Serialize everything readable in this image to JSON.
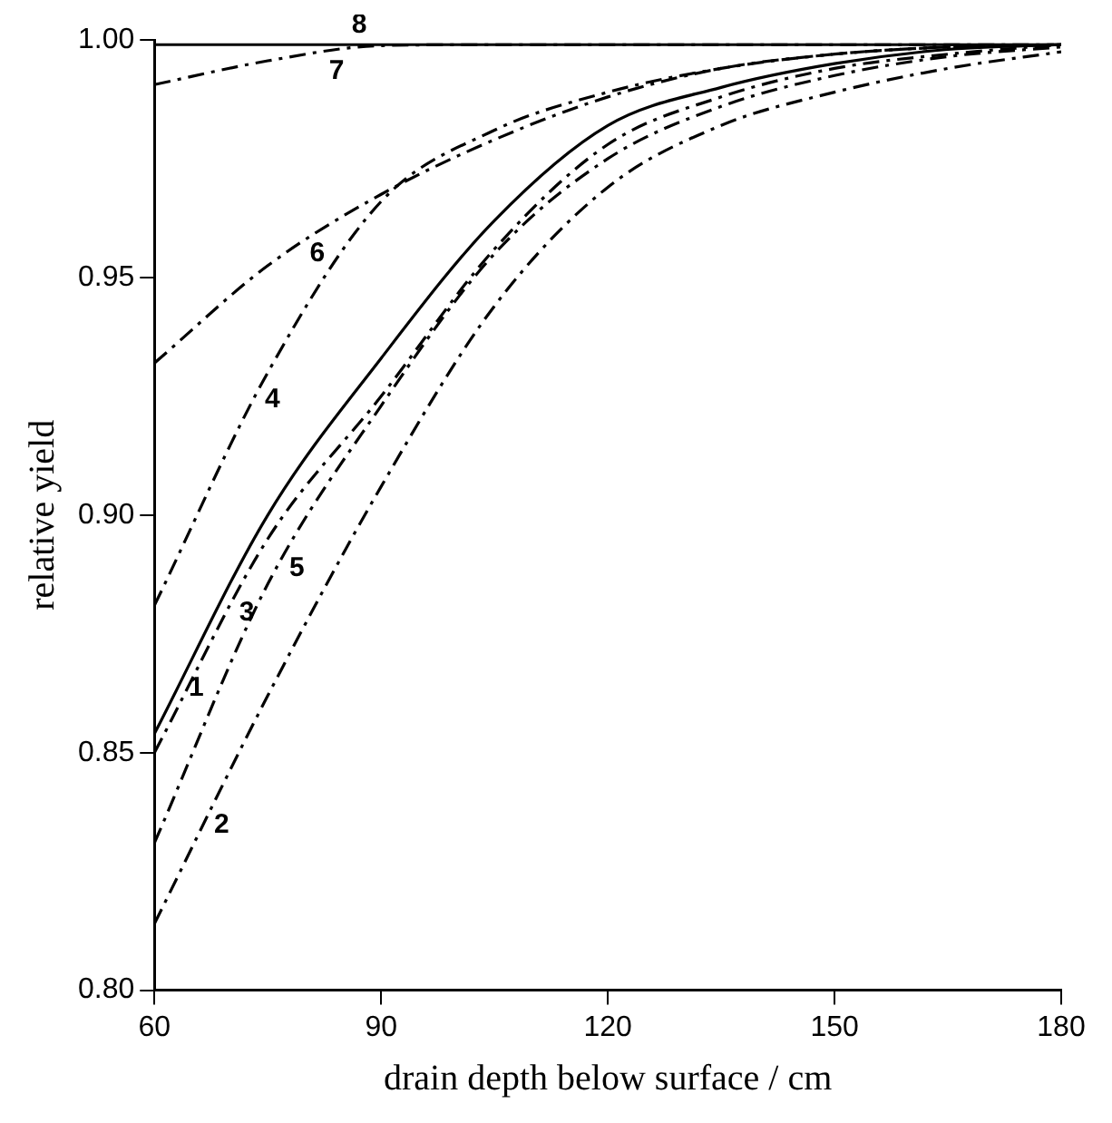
{
  "chart_data": {
    "type": "line",
    "xlabel": "drain depth below surface / cm",
    "ylabel": "relative yield",
    "xlim": [
      60,
      180
    ],
    "xticks": [
      60,
      90,
      120,
      150,
      180
    ],
    "ylim": [
      0.8,
      1.0
    ],
    "yticks": [
      {
        "value": 0.8,
        "label": "0.80"
      },
      {
        "value": 0.85,
        "label": "0.85"
      },
      {
        "value": 0.9,
        "label": "0.90"
      },
      {
        "value": 0.95,
        "label": "0.95"
      },
      {
        "value": 1.0,
        "label": "1.00"
      }
    ],
    "grid": false,
    "legend": false,
    "marker": "none",
    "x": [
      60,
      75,
      90,
      105,
      120,
      135,
      150,
      165,
      180
    ],
    "series": [
      {
        "name": "1",
        "color": "#000000",
        "line_style": "solid",
        "values": [
          0.854,
          0.9,
          0.933,
          0.962,
          0.982,
          0.99,
          0.995,
          0.998,
          0.999
        ]
      },
      {
        "name": "2",
        "color": "#000000",
        "line_style": "dashed",
        "values": [
          0.814,
          0.862,
          0.906,
          0.944,
          0.969,
          0.982,
          0.989,
          0.994,
          0.9975
        ]
      },
      {
        "name": "3",
        "color": "#000000",
        "line_style": "dashed",
        "values": [
          0.85,
          0.895,
          0.925,
          0.956,
          0.978,
          0.988,
          0.994,
          0.997,
          0.999
        ]
      },
      {
        "name": "4",
        "color": "#000000",
        "line_style": "dashed",
        "values": [
          0.881,
          0.93,
          0.966,
          0.981,
          0.989,
          0.994,
          0.997,
          0.9985,
          0.999
        ]
      },
      {
        "name": "5",
        "color": "#000000",
        "line_style": "dashed",
        "values": [
          0.831,
          0.8855,
          0.923,
          0.955,
          0.975,
          0.986,
          0.9925,
          0.9965,
          0.9985
        ]
      },
      {
        "name": "6",
        "color": "#000000",
        "line_style": "dashed",
        "values": [
          0.932,
          0.9525,
          0.9675,
          0.979,
          0.988,
          0.994,
          0.997,
          0.9985,
          0.999
        ]
      },
      {
        "name": "7",
        "color": "#000000",
        "line_style": "dashed",
        "values": [
          0.9906,
          0.9956,
          0.9988,
          0.999,
          0.999,
          0.999,
          0.999,
          0.999,
          0.999
        ]
      },
      {
        "name": "8",
        "color": "#000000",
        "line_style": "solid",
        "values": [
          0.999,
          0.999,
          0.999,
          0.999,
          0.999,
          0.999,
          0.999,
          0.999,
          0.999
        ]
      }
    ]
  }
}
